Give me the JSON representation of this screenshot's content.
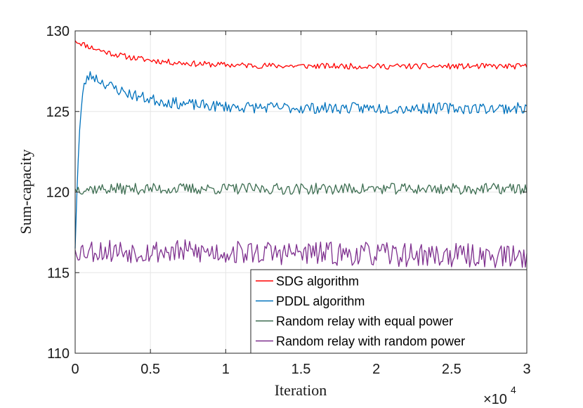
{
  "chart_data": {
    "type": "line",
    "title": "",
    "xlabel": "Iteration",
    "ylabel": "Sum-capacity",
    "x_multiplier_label": "×10",
    "x_multiplier_exp": "4",
    "xlim": [
      0,
      3
    ],
    "ylim": [
      110,
      130
    ],
    "xticks": [
      0,
      0.5,
      1,
      1.5,
      2,
      2.5,
      3
    ],
    "xtick_labels": [
      "0",
      "0.5",
      "1",
      "1.5",
      "2",
      "2.5",
      "3"
    ],
    "yticks": [
      110,
      115,
      120,
      125,
      130
    ],
    "ytick_labels": [
      "110",
      "115",
      "120",
      "125",
      "130"
    ],
    "grid": true,
    "legend_position": "bottom-right",
    "series": [
      {
        "name": "SDG algorithm",
        "color": "#ff0000",
        "model": "decay",
        "start": 129.4,
        "end": 127.8,
        "tau": 0.35,
        "noise": 0.18,
        "seed": 11
      },
      {
        "name": "PDDL algorithm",
        "color": "#0072bd",
        "model": "rise",
        "start": 116.5,
        "peak": 127.2,
        "peak_x": 0.12,
        "end": 125.2,
        "tau": 0.3,
        "noise": 0.35,
        "seed": 23
      },
      {
        "name": "Random relay with equal power",
        "color": "#3e6e52",
        "model": "flat",
        "start": 120.2,
        "end": 120.2,
        "noise": 0.35,
        "seed": 37
      },
      {
        "name": "Random relay with random power",
        "color": "#7e2f8e",
        "model": "flat",
        "start": 116.4,
        "end": 116.0,
        "noise": 0.75,
        "seed": 53
      }
    ],
    "points_per_series": 300
  }
}
